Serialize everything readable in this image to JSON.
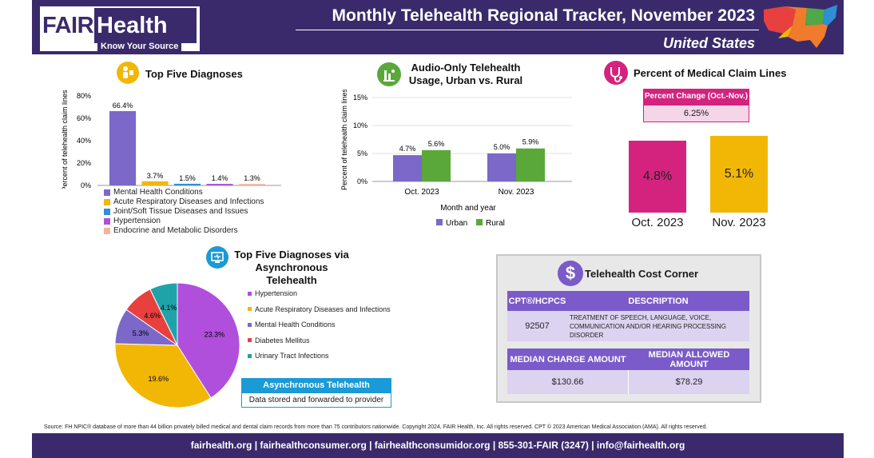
{
  "header": {
    "logo_fair": "FAIR",
    "logo_health": "Health",
    "logo_tagline": "Know Your Source",
    "title": "Monthly Telehealth Regional Tracker, November 2023",
    "region": "United States"
  },
  "colors": {
    "brand_purple": "#3b2a6b",
    "mental_health": "#7b68c9",
    "acute_respiratory": "#f2b705",
    "joint": "#2d8fd6",
    "hypertension": "#b04fdc",
    "endocrine": "#f2b49a",
    "diabetes": "#e8403e",
    "uti": "#1fa3a8",
    "urban": "#7b68c9",
    "rural": "#5aa83a",
    "magenta": "#d4237f",
    "gold": "#f2b705"
  },
  "chart_data": [
    {
      "id": "top-five-diagnoses",
      "type": "bar",
      "title": "Top Five Diagnoses",
      "ylabel": "Percent of telehealth claim lines",
      "ylim": [
        0,
        80
      ],
      "yticks": [
        "0%",
        "20%",
        "40%",
        "60%",
        "80%"
      ],
      "categories": [
        "Mental Health Conditions",
        "Acute Respiratory Diseases and Infections",
        "Joint/Soft Tissue Diseases and Issues",
        "Hypertension",
        "Endocrine and Metabolic Disorders"
      ],
      "values": [
        66.4,
        3.7,
        1.5,
        1.4,
        1.3
      ],
      "labels": [
        "66.4%",
        "3.7%",
        "1.5%",
        "1.4%",
        "1.3%"
      ],
      "legend": "bottom"
    },
    {
      "id": "audio-only",
      "type": "bar",
      "title": "Audio-Only Telehealth Usage, Urban vs. Rural",
      "ylabel": "Percent of telehealth claim lines",
      "xlabel": "Month and year",
      "ylim": [
        0,
        15
      ],
      "yticks": [
        "0%",
        "5%",
        "10%",
        "15%"
      ],
      "categories": [
        "Oct. 2023",
        "Nov. 2023"
      ],
      "series": [
        {
          "name": "Urban",
          "values": [
            4.7,
            5.0
          ],
          "labels": [
            "4.7%",
            "5.0%"
          ]
        },
        {
          "name": "Rural",
          "values": [
            5.6,
            5.9
          ],
          "labels": [
            "5.6%",
            "5.9%"
          ]
        }
      ],
      "legend": "bottom"
    },
    {
      "id": "percent-medical",
      "type": "bar",
      "title": "Percent of Medical Claim Lines",
      "categories": [
        "Oct. 2023",
        "Nov. 2023"
      ],
      "values": [
        4.8,
        5.1
      ],
      "labels": [
        "4.8%",
        "5.1%"
      ],
      "percent_change_label": "Percent Change (Oct.-Nov.)",
      "percent_change": "6.25%"
    },
    {
      "id": "async-diagnoses",
      "type": "pie",
      "title": "Top Five Diagnoses via Asynchronous Telehealth",
      "categories": [
        "Hypertension",
        "Acute Respiratory Diseases and Infections",
        "Mental Health Conditions",
        "Diabetes Mellitus",
        "Urinary Tract Infections"
      ],
      "values": [
        23.3,
        19.6,
        5.3,
        4.6,
        4.1
      ],
      "labels": [
        "23.3%",
        "19.6%",
        "5.3%",
        "4.6%",
        "4.1%"
      ],
      "legend": "right"
    }
  ],
  "async_box": {
    "title": "Asynchronous Telehealth",
    "text": "Data stored and forwarded to provider"
  },
  "cost_corner": {
    "title": "Telehealth Cost Corner",
    "icon_glyph": "$",
    "col_code": "CPT®/HCPCS",
    "col_desc": "DESCRIPTION",
    "code": "92507",
    "description": "TREATMENT OF SPEECH, LANGUAGE, VOICE, COMMUNICATION AND/OR HEARING PROCESSING DISORDER",
    "col_charge": "MEDIAN CHARGE AMOUNT",
    "col_allowed": "MEDIAN ALLOWED AMOUNT",
    "charge": "$130.66",
    "allowed": "$78.29"
  },
  "source": "Source: FH NPIC® database of more than 44 billion privately billed medical and dental claim records from more than 75 contributors nationwide. Copyright 2024, FAIR Health, Inc. All rights reserved. CPT © 2023 American Medical Association (AMA). All rights reserved.",
  "footer": "fairhealth.org  |  fairhealthconsumer.org  |  fairhealthconsumidor.org  |  855-301-FAIR (3247)  |  info@fairhealth.org"
}
